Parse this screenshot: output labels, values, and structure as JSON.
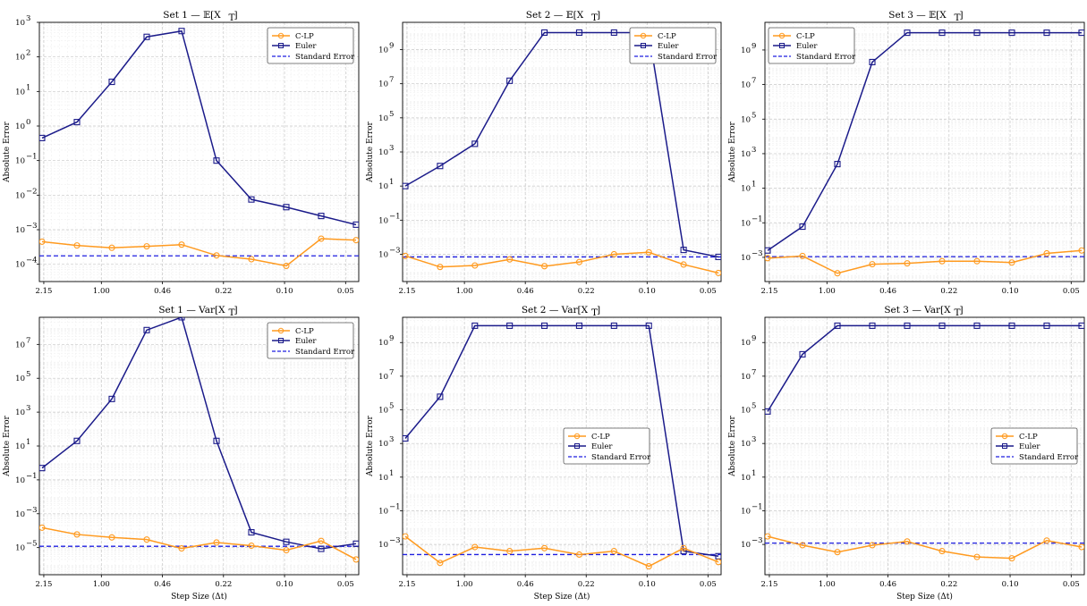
{
  "colors": {
    "clp": "#ff9a1f",
    "euler": "#1b1b8a",
    "stderr": "#1f1fe0"
  },
  "chart_data": [
    {
      "type": "line",
      "title": "Set 1 — 𝔼[X",
      "title_sub": "T",
      "title_close": "]",
      "xlabel": "",
      "ylabel": "Absolute Error",
      "yscale": "log",
      "ylim_exp": [
        -4.5,
        3
      ],
      "xtick_labels": [
        "2.15",
        "1.00",
        "0.46",
        "0.22",
        "0.10",
        "0.05"
      ],
      "ytick_base": "10",
      "ytick_exps": [
        "3",
        "2",
        "1",
        "0",
        "−1",
        "−2",
        "−3",
        "−4"
      ],
      "legend": {
        "position": "upper-right",
        "labels": [
          "C-LP",
          "Euler",
          "Standard Error"
        ]
      },
      "series": [
        {
          "name": "C-LP",
          "values": [
            0.00045,
            0.00035,
            0.0003,
            0.00033,
            0.00037,
            0.00018,
            0.00014,
            9e-05,
            0.00055,
            0.0005
          ]
        },
        {
          "name": "Euler",
          "values": [
            0.45,
            1.3,
            19,
            380,
            560,
            0.1,
            0.0075,
            0.0045,
            0.0025,
            0.0014
          ]
        },
        {
          "name": "Standard Error",
          "values": [
            0.000175
          ]
        }
      ]
    },
    {
      "type": "line",
      "title": "Set 2 — 𝔼[X",
      "title_sub": "T",
      "title_close": "]",
      "xlabel": "",
      "ylabel": "Absolute Error",
      "yscale": "log",
      "ylim_exp": [
        -4.6,
        10.6
      ],
      "xtick_labels": [
        "2.15",
        "1.00",
        "0.46",
        "0.22",
        "0.10",
        "0.05"
      ],
      "ytick_base": "10",
      "ytick_exps": [
        "9",
        "7",
        "5",
        "3",
        "1",
        "−1",
        "−3"
      ],
      "legend": {
        "position": "upper-right",
        "labels": [
          "C-LP",
          "Euler",
          "Standard Error"
        ]
      },
      "series": [
        {
          "name": "C-LP",
          "values": [
            0.0008,
            0.00018,
            0.00022,
            0.0005,
            0.0002,
            0.00035,
            0.001,
            0.0013,
            0.00025,
            8e-05
          ]
        },
        {
          "name": "Euler",
          "values": [
            10,
            150,
            3000,
            15000000,
            10000000000,
            10000000000,
            10000000000,
            10000000000,
            0.0018,
            0.0007
          ]
        },
        {
          "name": "Standard Error",
          "values": [
            0.0007
          ]
        }
      ]
    },
    {
      "type": "line",
      "title": "Set 3 — 𝔼[X",
      "title_sub": "T",
      "title_close": "]",
      "xlabel": "",
      "ylabel": "Absolute Error",
      "yscale": "log",
      "ylim_exp": [
        -4.4,
        10.6
      ],
      "xtick_labels": [
        "2.15",
        "1.00",
        "0.46",
        "0.22",
        "0.10",
        "0.05"
      ],
      "ytick_base": "10",
      "ytick_exps": [
        "9",
        "7",
        "5",
        "3",
        "1",
        "−1",
        "−3"
      ],
      "legend": {
        "position": "upper-left",
        "labels": [
          "C-LP",
          "Euler",
          "Standard Error"
        ]
      },
      "series": [
        {
          "name": "C-LP",
          "values": [
            0.0009,
            0.0012,
            0.00012,
            0.0004,
            0.00045,
            0.0006,
            0.0006,
            0.0005,
            0.0017,
            0.0025
          ]
        },
        {
          "name": "Euler",
          "values": [
            0.0025,
            0.06,
            250,
            200000000,
            10000000000,
            10000000000,
            10000000000,
            10000000000,
            10000000000,
            10000000000
          ]
        },
        {
          "name": "Standard Error",
          "values": [
            0.0011
          ]
        }
      ]
    },
    {
      "type": "line",
      "title": "Set 1 — Var[X",
      "title_sub": "T",
      "title_close": "]",
      "xlabel": "Step Size (Δt)",
      "ylabel": "Absolute Error",
      "yscale": "log",
      "ylim_exp": [
        -6.6,
        8.6
      ],
      "xtick_labels": [
        "2.15",
        "1.00",
        "0.46",
        "0.22",
        "0.10",
        "0.05"
      ],
      "ytick_base": "10",
      "ytick_exps": [
        "7",
        "5",
        "3",
        "1",
        "−1",
        "−3",
        "−5"
      ],
      "legend": {
        "position": "upper-right",
        "labels": [
          "C-LP",
          "Euler",
          "Standard Error"
        ]
      },
      "series": [
        {
          "name": "C-LP",
          "values": [
            0.00015,
            6e-05,
            4e-05,
            3e-05,
            9e-06,
            2e-05,
            1.3e-05,
            7e-06,
            2.5e-05,
            2e-06
          ]
        },
        {
          "name": "Euler",
          "values": [
            0.5,
            20,
            6000,
            70000000,
            400000000,
            20,
            8e-05,
            2.2e-05,
            8.5e-06,
            1.7e-05
          ]
        },
        {
          "name": "Standard Error",
          "values": [
            1.2e-05
          ]
        }
      ]
    },
    {
      "type": "line",
      "title": "Set 2 — Var[X",
      "title_sub": "T",
      "title_close": "]",
      "xlabel": "Step Size (Δt)",
      "ylabel": "Absolute Error",
      "yscale": "log",
      "ylim_exp": [
        -4.8,
        10.5
      ],
      "xtick_labels": [
        "2.15",
        "1.00",
        "0.46",
        "0.22",
        "0.10",
        "0.05"
      ],
      "ytick_base": "10",
      "ytick_exps": [
        "9",
        "7",
        "5",
        "3",
        "1",
        "−1",
        "−3"
      ],
      "legend": {
        "position": "center",
        "labels": [
          "C-LP",
          "Euler",
          "Standard Error"
        ]
      },
      "series": [
        {
          "name": "C-LP",
          "values": [
            0.003,
            8e-05,
            0.0007,
            0.0004,
            0.0006,
            0.00025,
            0.0004,
            5e-05,
            0.0006,
            9e-05
          ]
        },
        {
          "name": "Euler",
          "values": [
            2000,
            600000,
            10000000000,
            10000000000,
            10000000000,
            10000000000,
            10000000000,
            10000000000,
            0.0004,
            0.0002
          ]
        },
        {
          "name": "Standard Error",
          "values": [
            0.00025
          ]
        }
      ]
    },
    {
      "type": "line",
      "title": "Set 3 — Var[X",
      "title_sub": "T",
      "title_close": "]",
      "xlabel": "Step Size (Δt)",
      "ylabel": "Absolute Error",
      "yscale": "log",
      "ylim_exp": [
        -4.8,
        10.5
      ],
      "xtick_labels": [
        "2.15",
        "1.00",
        "0.46",
        "0.22",
        "0.10",
        "0.05"
      ],
      "ytick_base": "10",
      "ytick_exps": [
        "9",
        "7",
        "5",
        "3",
        "1",
        "−1",
        "−3"
      ],
      "legend": {
        "position": "center-right",
        "labels": [
          "C-LP",
          "Euler",
          "Standard Error"
        ]
      },
      "series": [
        {
          "name": "C-LP",
          "values": [
            0.003,
            0.0009,
            0.00035,
            0.0009,
            0.0015,
            0.0004,
            0.00018,
            0.00015,
            0.0017,
            0.0007
          ]
        },
        {
          "name": "Euler",
          "values": [
            80000,
            200000000,
            10000000000,
            10000000000,
            10000000000,
            10000000000,
            10000000000,
            10000000000,
            10000000000,
            10000000000
          ]
        },
        {
          "name": "Standard Error",
          "values": [
            0.0012
          ]
        }
      ]
    }
  ]
}
